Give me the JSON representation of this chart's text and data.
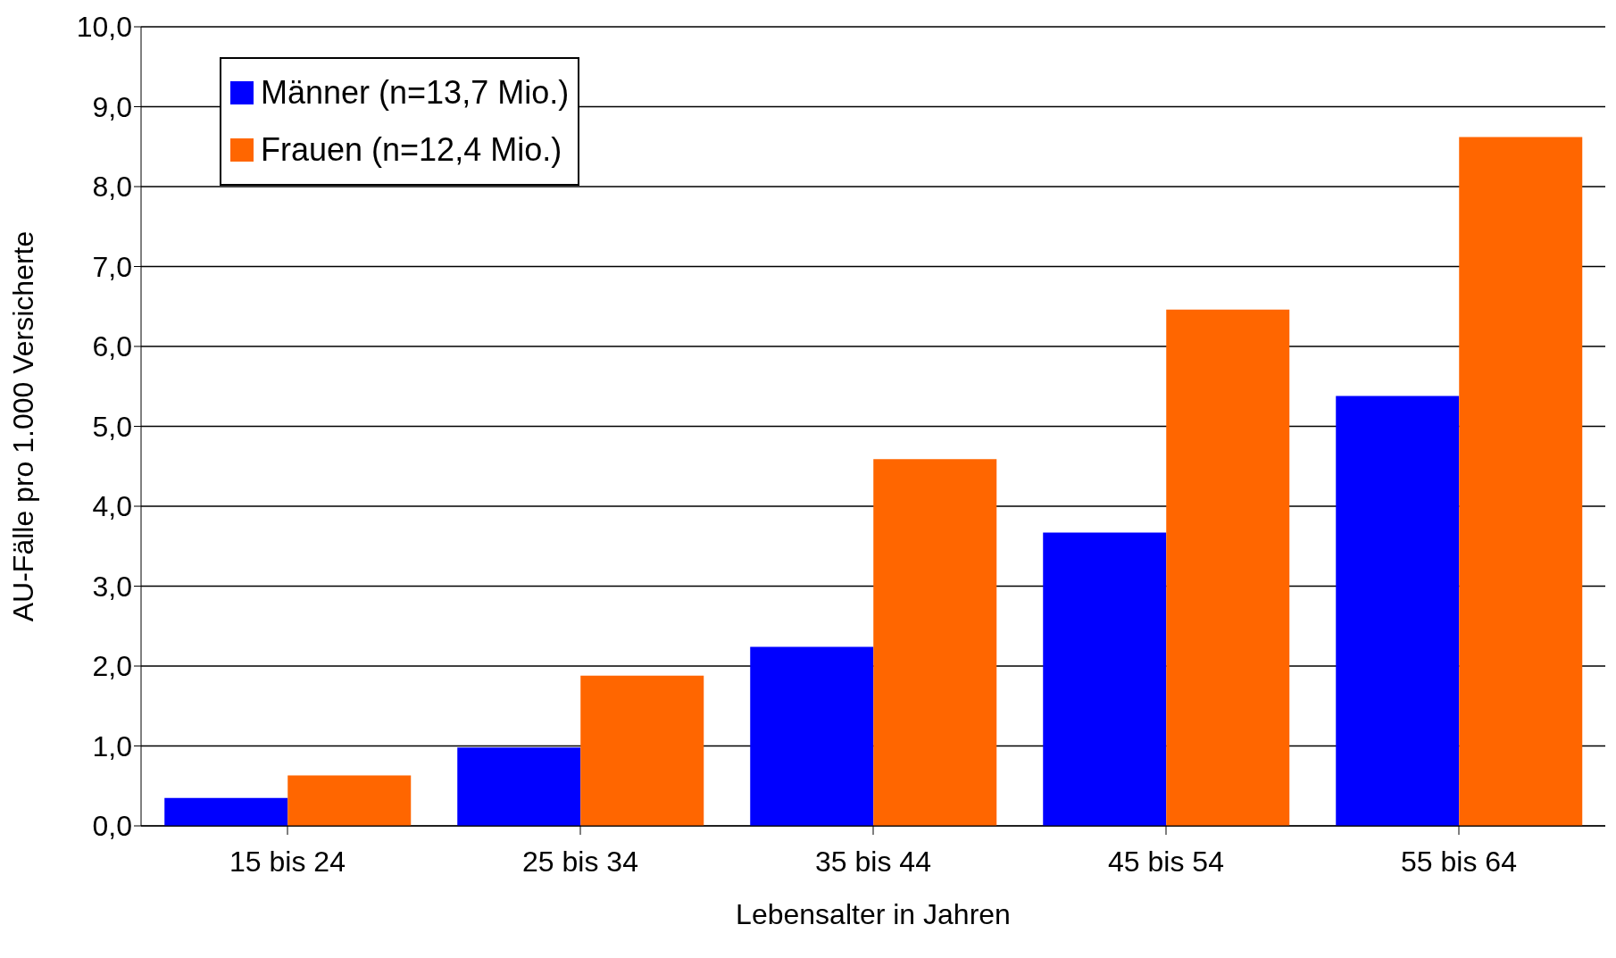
{
  "chart_data": {
    "type": "bar",
    "xlabel": "Lebensalter in Jahren",
    "ylabel": "AU-Fälle pro 1.000 Versicherte",
    "categories": [
      "15 bis 24",
      "25 bis 34",
      "35 bis 44",
      "45 bis 54",
      "55 bis 64"
    ],
    "series": [
      {
        "name": "Männer (n=13,7 Mio.)",
        "color": "#0000ff",
        "values": [
          0.35,
          0.98,
          2.24,
          3.67,
          5.38
        ]
      },
      {
        "name": "Frauen (n=12,4 Mio.)",
        "color": "#ff6600",
        "values": [
          0.63,
          1.88,
          4.59,
          6.46,
          8.62
        ]
      }
    ],
    "ylim": [
      0,
      10
    ],
    "yticks": [
      {
        "value": 0,
        "label": "0,0"
      },
      {
        "value": 1,
        "label": "1,0"
      },
      {
        "value": 2,
        "label": "2,0"
      },
      {
        "value": 3,
        "label": "3,0"
      },
      {
        "value": 4,
        "label": "4,0"
      },
      {
        "value": 5,
        "label": "5,0"
      },
      {
        "value": 6,
        "label": "6,0"
      },
      {
        "value": 7,
        "label": "7,0"
      },
      {
        "value": 8,
        "label": "8,0"
      },
      {
        "value": 9,
        "label": "9,0"
      },
      {
        "value": 10,
        "label": "10,0"
      }
    ],
    "grid": "y",
    "legend": "top left"
  }
}
